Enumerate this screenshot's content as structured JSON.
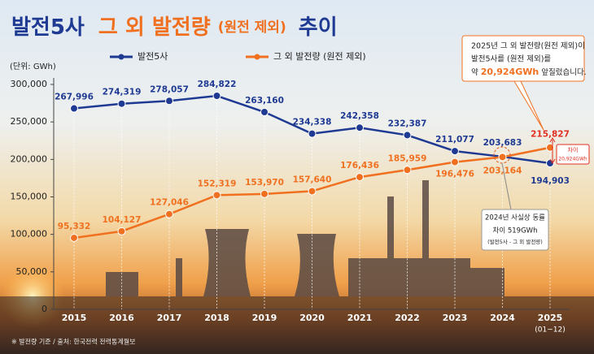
{
  "chart_data": {
    "type": "line",
    "title_parts": [
      "발전5사",
      "그 외 발전량",
      "(원전 제외)",
      "추이"
    ],
    "unit_label": "(단위: GWh)",
    "categories": [
      "2015",
      "2016",
      "2017",
      "2018",
      "2019",
      "2020",
      "2021",
      "2022",
      "2023",
      "2024",
      "2025"
    ],
    "category_note": "(01~12)",
    "series": [
      {
        "name": "발전5사",
        "color": "#1f3a93",
        "values": [
          267996,
          274319,
          278057,
          284822,
          263160,
          234338,
          242358,
          232387,
          211077,
          203683,
          194903
        ],
        "value_labels": [
          "267,996",
          "274,319",
          "278,057",
          "284,822",
          "263,160",
          "234,338",
          "242,358",
          "232,387",
          "211,077",
          "203,683",
          "194,903"
        ]
      },
      {
        "name": "그 외 발전량 (원전 제외)",
        "color": "#f07020",
        "values": [
          95332,
          104127,
          127046,
          152319,
          153970,
          157640,
          176436,
          185959,
          196476,
          203164,
          215827
        ],
        "value_labels": [
          "95,332",
          "104,127",
          "127,046",
          "152,319",
          "153,970",
          "157,640",
          "176,436",
          "185,959",
          "196,476",
          "203,164",
          "215,827"
        ]
      }
    ],
    "ylim": [
      0,
      300000
    ],
    "yticks": [
      0,
      {
        "value": 50000,
        "label": "50,000"
      },
      {
        "value": 100000,
        "label": "100,000"
      },
      {
        "value": 150000,
        "label": "150,000"
      },
      {
        "value": 200000,
        "label": "200,000"
      },
      {
        "value": 250000,
        "label": "250,000"
      },
      {
        "value": 300000,
        "label": "300,000"
      }
    ],
    "grid": false,
    "annotations": {
      "overtake": {
        "line1": "2025년 그 외 발전량(원전 제외)이",
        "line2": "발전5사를 (원전 제외)를",
        "line3_parts": [
          "약 ",
          "20,924GWh",
          " 앞질렀습니다."
        ]
      },
      "tie": {
        "line1": "2024년 사실상 동률",
        "line2": "차이 519GWh",
        "line3": "(발전5사 - 그 외 발전량)"
      },
      "gap": {
        "line1": "차이",
        "line2": "20,924GWh"
      }
    },
    "footnote": "※ 발전량 기준 / 출처: 한국전력 전력통계월보"
  }
}
